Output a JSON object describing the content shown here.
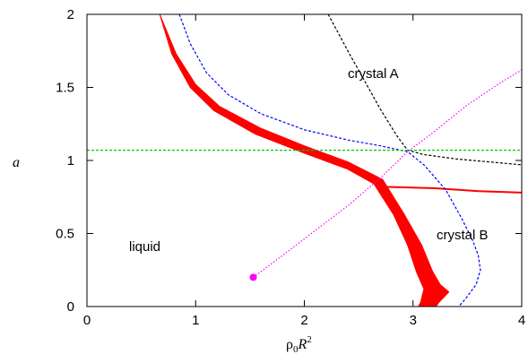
{
  "chart_data": {
    "type": "line",
    "xlim": [
      0,
      4
    ],
    "ylim": [
      0,
      2
    ],
    "x_ticks": [
      "0",
      "1",
      "2",
      "3",
      "4"
    ],
    "y_ticks": [
      "0",
      "0.5",
      "1",
      "1.5",
      "2"
    ],
    "xlabel": {
      "main": "ρ",
      "sub": "0",
      "italic": "R",
      "sup": "2"
    },
    "ylabel": "a",
    "grid": false,
    "annotations": {
      "liquid": "liquid",
      "crystal_a": "crystal A",
      "crystal_b": "crystal B"
    },
    "series": [
      {
        "style": "thick band",
        "color": "#ff0000",
        "upper_edge": [
          [
            0.67,
            2.0
          ],
          [
            0.82,
            1.73
          ],
          [
            1.0,
            1.52
          ],
          [
            1.22,
            1.37
          ],
          [
            1.6,
            1.22
          ],
          [
            2.0,
            1.1
          ],
          [
            2.4,
            0.99
          ],
          [
            2.72,
            0.87
          ],
          [
            2.92,
            0.63
          ],
          [
            3.08,
            0.42
          ],
          [
            3.18,
            0.24
          ],
          [
            3.25,
            0.15
          ],
          [
            3.33,
            0.1
          ],
          [
            3.24,
            0.03
          ],
          [
            3.21,
            0.0
          ]
        ],
        "lower_edge": [
          [
            0.67,
            2.0
          ],
          [
            0.78,
            1.73
          ],
          [
            0.95,
            1.5
          ],
          [
            1.17,
            1.34
          ],
          [
            1.55,
            1.18
          ],
          [
            2.0,
            1.05
          ],
          [
            2.4,
            0.94
          ],
          [
            2.64,
            0.84
          ],
          [
            2.82,
            0.63
          ],
          [
            2.95,
            0.42
          ],
          [
            3.03,
            0.24
          ],
          [
            3.1,
            0.12
          ],
          [
            3.07,
            0.03
          ],
          [
            3.05,
            0.0
          ]
        ]
      },
      {
        "style": "solid",
        "color": "#ff0000",
        "points": [
          [
            2.72,
            0.82
          ],
          [
            3.2,
            0.81
          ],
          [
            3.6,
            0.79
          ],
          [
            4.0,
            0.78
          ]
        ]
      },
      {
        "style": "dashed",
        "color": "#0000ff",
        "points": [
          [
            0.85,
            2.0
          ],
          [
            0.95,
            1.8
          ],
          [
            1.1,
            1.6
          ],
          [
            1.3,
            1.45
          ],
          [
            1.6,
            1.32
          ],
          [
            2.0,
            1.21
          ],
          [
            2.4,
            1.14
          ],
          [
            2.7,
            1.1
          ],
          [
            2.95,
            1.06
          ],
          [
            3.1,
            0.97
          ],
          [
            3.3,
            0.8
          ],
          [
            3.45,
            0.6
          ],
          [
            3.55,
            0.45
          ],
          [
            3.6,
            0.35
          ],
          [
            3.62,
            0.25
          ],
          [
            3.58,
            0.15
          ],
          [
            3.48,
            0.05
          ],
          [
            3.42,
            0.0
          ]
        ]
      },
      {
        "style": "dashed",
        "color": "#000000",
        "points": [
          [
            2.22,
            2.0
          ],
          [
            2.4,
            1.75
          ],
          [
            2.55,
            1.55
          ],
          [
            2.7,
            1.35
          ],
          [
            2.85,
            1.17
          ],
          [
            2.95,
            1.07
          ],
          [
            3.1,
            1.04
          ],
          [
            3.4,
            1.01
          ],
          [
            3.7,
            0.99
          ],
          [
            4.0,
            0.97
          ]
        ]
      },
      {
        "style": "dashed",
        "color": "#00cc00",
        "points": [
          [
            0.0,
            1.07
          ],
          [
            4.0,
            1.07
          ]
        ]
      },
      {
        "style": "dotted",
        "color": "#ff00ff",
        "points": [
          [
            1.53,
            0.2
          ],
          [
            1.8,
            0.35
          ],
          [
            2.1,
            0.52
          ],
          [
            2.4,
            0.69
          ],
          [
            2.7,
            0.88
          ],
          [
            2.95,
            1.06
          ],
          [
            3.2,
            1.2
          ],
          [
            3.5,
            1.38
          ],
          [
            3.8,
            1.53
          ],
          [
            4.0,
            1.62
          ]
        ]
      }
    ],
    "marker": {
      "x": 1.53,
      "y": 0.2,
      "color": "#ff00ff"
    }
  }
}
